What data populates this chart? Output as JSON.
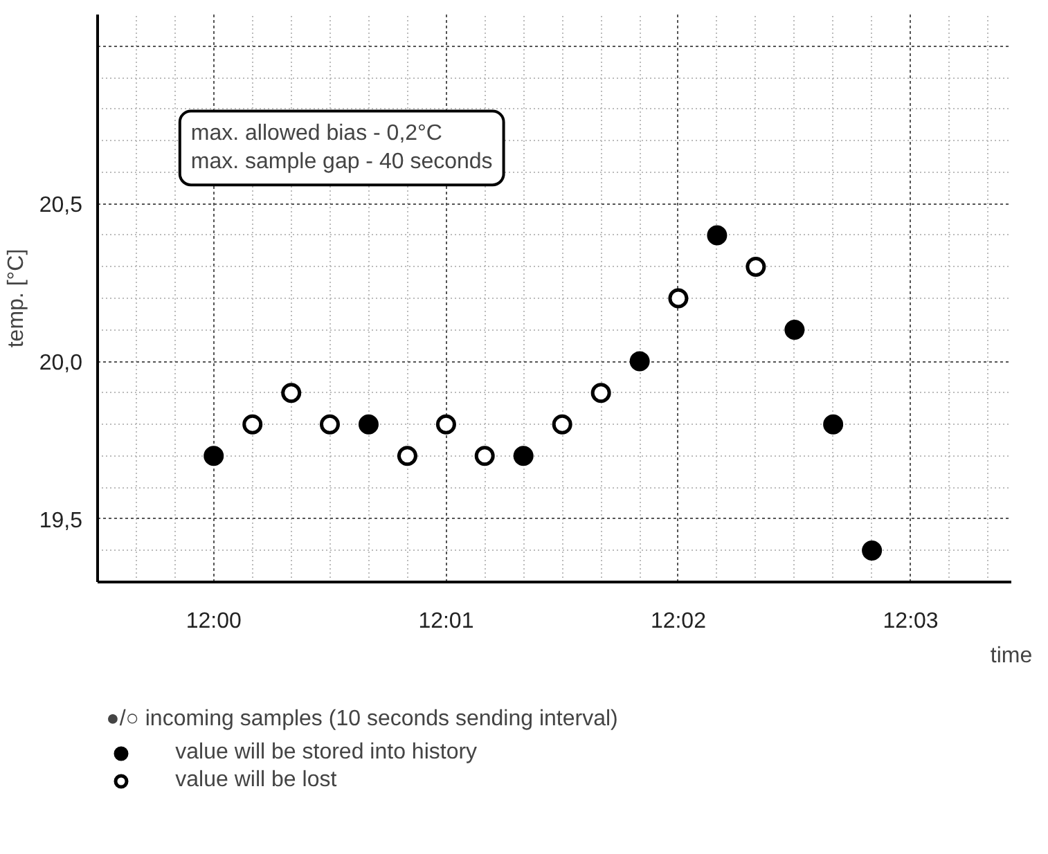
{
  "chart_data": {
    "type": "scatter",
    "xlabel": "time",
    "ylabel": "temp. [°C]",
    "legend_title": "●/○ incoming samples (10 seconds sending interval)",
    "annotations": [
      "max. allowed bias - 0,2°C\nmax. sample gap - 40 seconds"
    ],
    "series": [
      {
        "name": "value will be stored into history",
        "color": "#000000",
        "x": [
          12.0,
          12.01111,
          12.02222,
          12.03056,
          12.03611,
          12.04167,
          12.04444,
          12.04722
        ],
        "values": [
          19.7,
          19.8,
          19.7,
          20.0,
          20.4,
          20.1,
          19.8,
          19.4
        ]
      },
      {
        "name": "value will be lost",
        "color": "#ffffff",
        "x": [
          12.00278,
          12.00556,
          12.00833,
          12.01389,
          12.01667,
          12.01944,
          12.025,
          12.02778,
          12.03333,
          12.03889
        ],
        "values": [
          19.8,
          19.9,
          19.8,
          19.7,
          19.8,
          19.7,
          19.8,
          19.9,
          20.2,
          20.3
        ]
      }
    ],
    "marker": "circle",
    "xlim": [
      11.99167,
      12.05722
    ],
    "ylim": [
      19.3,
      21.1
    ],
    "xticks": [
      {
        "value": 12.0,
        "label": "12:00"
      },
      {
        "value": 12.01667,
        "label": "12:01"
      },
      {
        "value": 12.03333,
        "label": "12:02"
      },
      {
        "value": 12.05,
        "label": "12:03"
      }
    ],
    "yticks": [
      {
        "value": 19.5,
        "label": "19,5"
      },
      {
        "value": 20.0,
        "label": "20,0"
      },
      {
        "value": 20.5,
        "label": "20,5"
      },
      {
        "value": 21.0,
        "label": null
      }
    ],
    "grid": true,
    "legend": "bottom"
  }
}
